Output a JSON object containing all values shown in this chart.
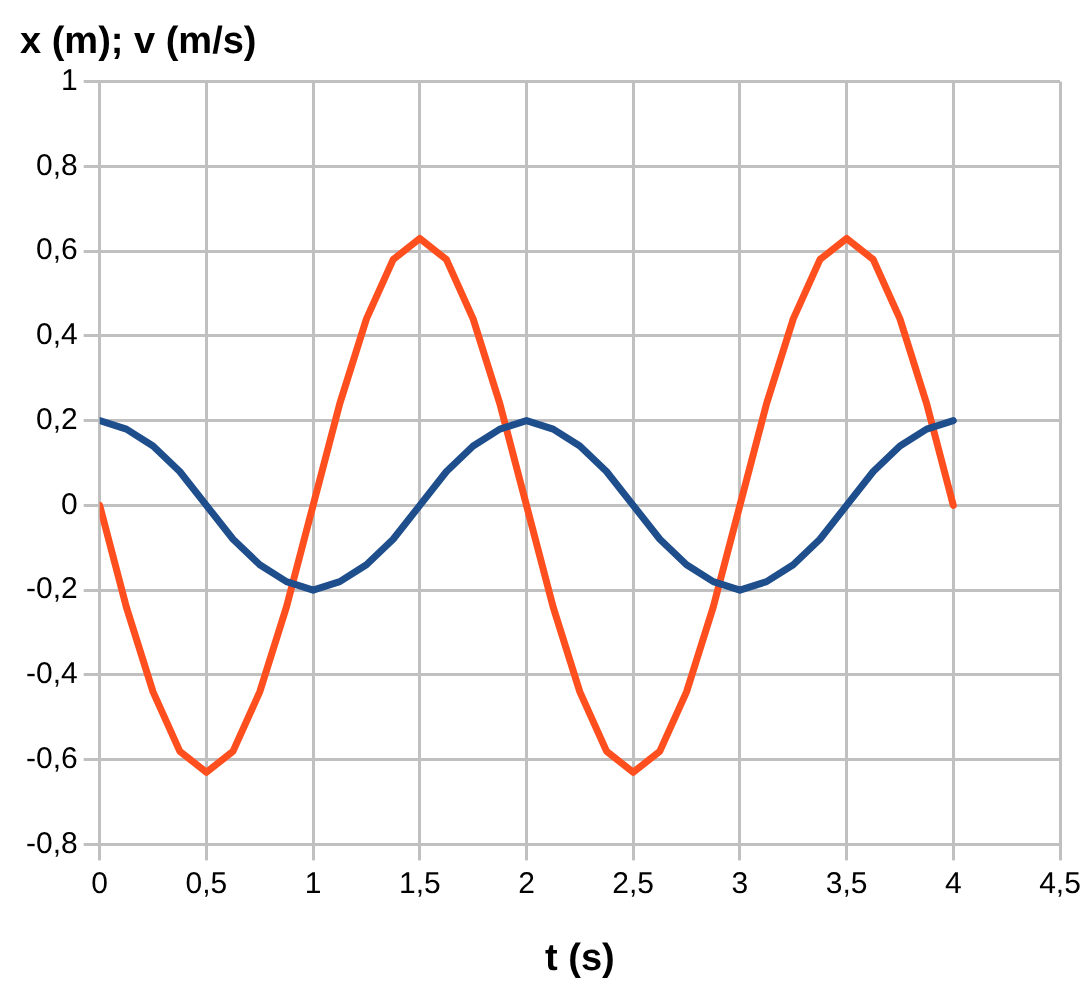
{
  "chart_data": {
    "type": "line",
    "ylabel": "x (m); v (m/s)",
    "xlabel": "t (s)",
    "x": [
      0,
      0.125,
      0.25,
      0.375,
      0.5,
      0.625,
      0.75,
      0.875,
      1,
      1.125,
      1.25,
      1.375,
      1.5,
      1.625,
      1.75,
      1.875,
      2,
      2.125,
      2.25,
      2.375,
      2.5,
      2.625,
      2.75,
      2.875,
      3,
      3.125,
      3.25,
      3.375,
      3.5,
      3.625,
      3.75,
      3.875,
      4
    ],
    "series": [
      {
        "color": "#1f4e8c",
        "values": [
          0.2,
          0.18,
          0.14,
          0.08,
          0,
          -0.08,
          -0.14,
          -0.18,
          -0.2,
          -0.18,
          -0.14,
          -0.08,
          0,
          0.08,
          0.14,
          0.18,
          0.2,
          0.18,
          0.14,
          0.08,
          0,
          -0.08,
          -0.14,
          -0.18,
          -0.2,
          -0.18,
          -0.14,
          -0.08,
          0,
          0.08,
          0.14,
          0.18,
          0.2
        ]
      },
      {
        "color": "#ff4f1f",
        "values": [
          0,
          -0.24,
          -0.44,
          -0.58,
          -0.63,
          -0.58,
          -0.44,
          -0.24,
          0,
          0.24,
          0.44,
          0.58,
          0.63,
          0.58,
          0.44,
          0.24,
          0,
          -0.24,
          -0.44,
          -0.58,
          -0.63,
          -0.58,
          -0.44,
          -0.24,
          0,
          0.24,
          0.44,
          0.58,
          0.63,
          0.58,
          0.44,
          0.24,
          0
        ]
      }
    ],
    "xlim": [
      0,
      4.5
    ],
    "ylim": [
      -0.8,
      1
    ],
    "xticks": [
      0,
      {
        "value": 0.5,
        "label": "0,5"
      },
      1,
      {
        "value": 1.5,
        "label": "1,5"
      },
      2,
      {
        "value": 2.5,
        "label": "2,5"
      },
      3,
      {
        "value": 3.5,
        "label": "3,5"
      },
      4,
      {
        "value": 4.5,
        "label": "4,5"
      }
    ],
    "yticks": [
      {
        "value": -0.8,
        "label": "-0,8"
      },
      {
        "value": -0.6,
        "label": "-0,6"
      },
      {
        "value": -0.4,
        "label": "-0,4"
      },
      {
        "value": -0.2,
        "label": "-0,2"
      },
      0,
      {
        "value": 0.2,
        "label": "0,2"
      },
      {
        "value": 0.4,
        "label": "0,4"
      },
      {
        "value": 0.6,
        "label": "0,6"
      },
      {
        "value": 0.8,
        "label": "0,8"
      },
      1
    ],
    "grid": true,
    "marker": "none",
    "line_style": "solid"
  }
}
